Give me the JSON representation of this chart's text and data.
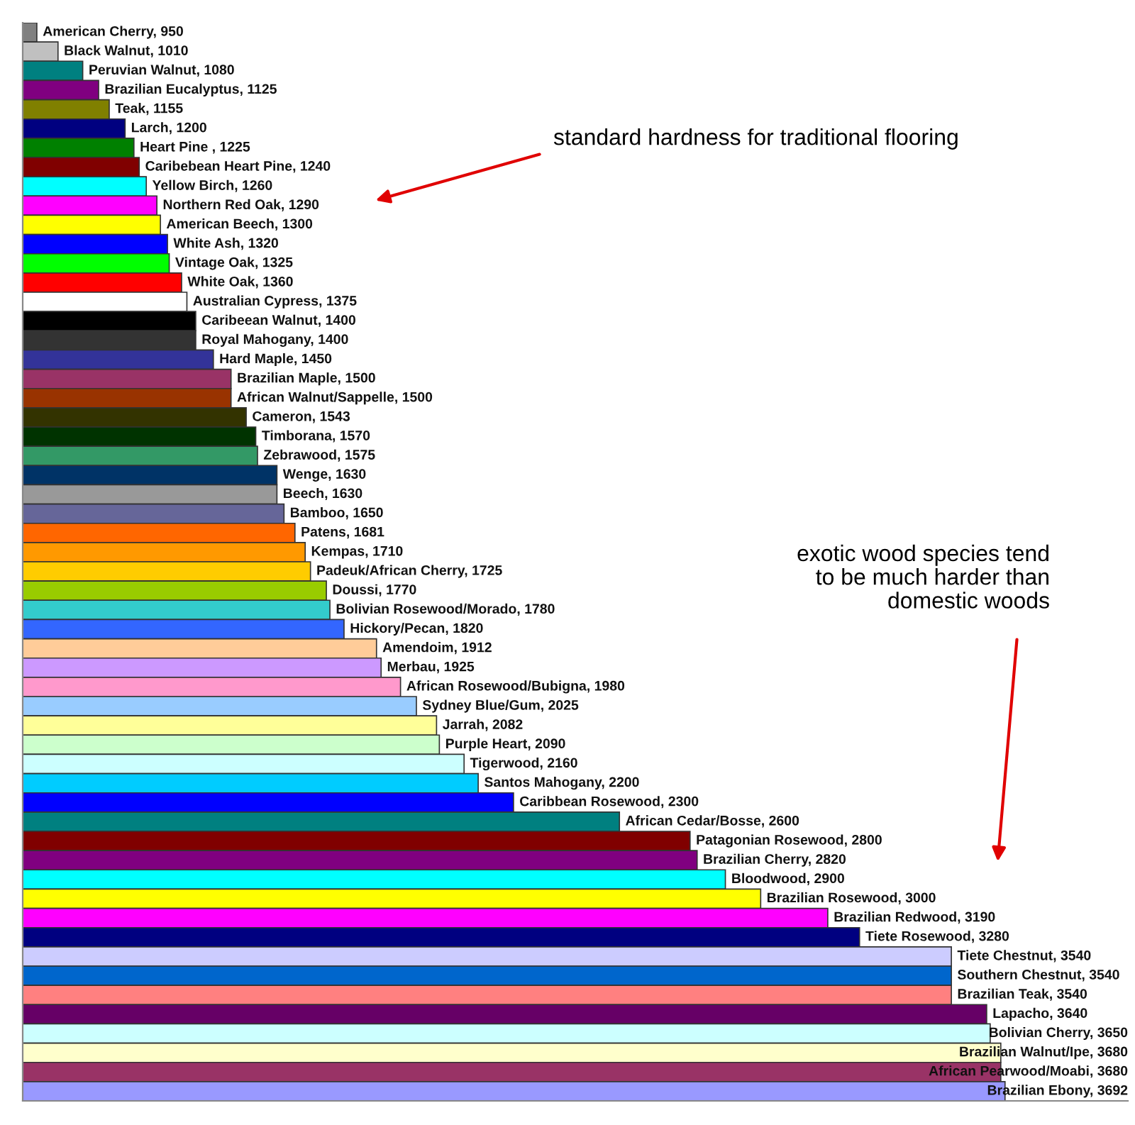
{
  "chart_data": {
    "type": "bar",
    "orientation": "horizontal",
    "categories": [
      null,
      null,
      null,
      null,
      null,
      null,
      null,
      null,
      null,
      null,
      null,
      null,
      null,
      null,
      null,
      null,
      null,
      null,
      null,
      null,
      null,
      null,
      null,
      null,
      null,
      null,
      null,
      null,
      null,
      null,
      null,
      null,
      null,
      null,
      null,
      null,
      null,
      null,
      null,
      null,
      null,
      null,
      null,
      null,
      null,
      null,
      null,
      null,
      null,
      null,
      null,
      null,
      null,
      null,
      null,
      null
    ],
    "values": [
      950,
      1010,
      1080,
      1125,
      1155,
      1200,
      1225,
      1240,
      1260,
      1290,
      1300,
      1320,
      1325,
      1360,
      1375,
      1400,
      1400,
      1450,
      1500,
      1500,
      1543,
      1570,
      1575,
      1630,
      1630,
      1650,
      1681,
      1710,
      1725,
      1770,
      1780,
      1820,
      1912,
      1925,
      1980,
      2025,
      2082,
      2090,
      2160,
      2200,
      2300,
      2600,
      2800,
      2820,
      2900,
      3000,
      3190,
      3280,
      3540,
      3540,
      3540,
      3640,
      3650,
      3680,
      3680,
      3692
    ],
    "value_labels": [
      "American Cherry, 950",
      "Black Walnut, 1010",
      "Peruvian Walnut, 1080",
      "Brazilian Eucalyptus, 1125",
      "Teak, 1155",
      "Larch, 1200",
      "Heart Pine , 1225",
      "Caribebean Heart Pine, 1240",
      "Yellow Birch, 1260",
      "Northern Red Oak, 1290",
      "American Beech, 1300",
      "White Ash, 1320",
      "Vintage Oak, 1325",
      "White Oak, 1360",
      "Australian Cypress, 1375",
      "Caribeean Walnut, 1400",
      "Royal Mahogany, 1400",
      "Hard Maple, 1450",
      "Brazilian Maple, 1500",
      "African Walnut/Sappelle, 1500",
      "Cameron, 1543",
      "Timborana, 1570",
      "Zebrawood, 1575",
      "Wenge, 1630",
      "Beech, 1630",
      "Bamboo, 1650",
      "Patens, 1681",
      "Kempas, 1710",
      "Padeuk/African Cherry, 1725",
      "Doussi, 1770",
      "Bolivian Rosewood/Morado, 1780",
      "Hickory/Pecan, 1820",
      "Amendoim, 1912",
      "Merbau, 1925",
      "African Rosewood/Bubigna, 1980",
      "Sydney Blue/Gum, 2025",
      "Jarrah, 2082",
      "Purple Heart, 2090",
      "Tigerwood, 2160",
      "Santos Mahogany, 2200",
      "Caribbean Rosewood, 2300",
      "African Cedar/Bosse, 2600",
      "Patagonian Rosewood, 2800",
      "Brazilian Cherry, 2820",
      "Bloodwood, 2900",
      "Brazilian Rosewood, 3000",
      "Brazilian Redwood, 3190",
      "Tiete Rosewood, 3280",
      "Tiete Chestnut, 3540",
      "Southern Chestnut, 3540",
      "Brazilian Teak, 3540",
      "Lapacho, 3640",
      "Bolivian Cherry, 3650",
      "Brazilian Walnut/Ipe, 3680",
      "African Pearwood/Moabi, 3680",
      "Brazilian Ebony, 3692"
    ],
    "colors": [
      "#808080",
      "#c0c0c0",
      "#008080",
      "#800080",
      "#808000",
      "#000080",
      "#008000",
      "#800000",
      "#00ffff",
      "#ff00ff",
      "#ffff00",
      "#0000ff",
      "#00ff00",
      "#ff0000",
      "#ffffff",
      "#000000",
      "#333333",
      "#333399",
      "#993366",
      "#993300",
      "#333300",
      "#003300",
      "#339966",
      "#003366",
      "#999999",
      "#666699",
      "#ff6600",
      "#ff9900",
      "#ffcc00",
      "#99cc00",
      "#33cccc",
      "#3366ff",
      "#ffcc99",
      "#cc99ff",
      "#ff99cc",
      "#99ccff",
      "#ffff99",
      "#ccffcc",
      "#ccffff",
      "#00ccff",
      "#0000ff",
      "#008080",
      "#800000",
      "#800080",
      "#00ffff",
      "#ffff00",
      "#ff00ff",
      "#000080",
      "#ccccff",
      "#0066cc",
      "#ff8080",
      "#660066",
      "#ccffff",
      "#ffffcc",
      "#993366",
      "#9999ff"
    ],
    "xlim": [
      910,
      4040
    ],
    "tick_labels": false,
    "annotations": [
      "standard hardness for traditional flooring",
      "exotic wood species tend\nto be much harder than\ndomestic woods"
    ]
  }
}
